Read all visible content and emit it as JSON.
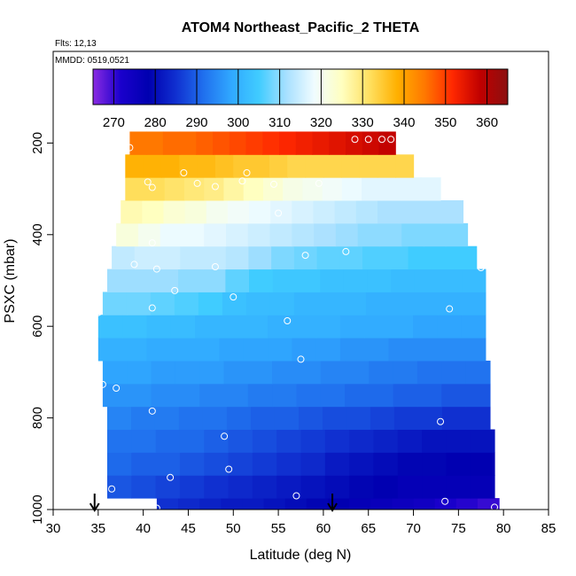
{
  "chart_data": {
    "type": "heatmap",
    "title": "ATOM4 Northeast_Pacific_2 THETA",
    "annotations": [
      "Flts: 12,13",
      "MMDD: 0519,0521"
    ],
    "xlabel": "Latitude (deg N)",
    "ylabel": "PSXC (mbar)",
    "xlim": [
      30,
      85
    ],
    "ylim": [
      1000,
      0
    ],
    "x_ticks": [
      30,
      35,
      40,
      45,
      50,
      55,
      60,
      65,
      70,
      75,
      80,
      85
    ],
    "y_ticks": [
      200,
      400,
      600,
      800,
      1000
    ],
    "colorbar": {
      "range": [
        265,
        365
      ],
      "ticks": [
        270,
        280,
        290,
        300,
        310,
        320,
        330,
        340,
        350,
        360
      ],
      "colors": [
        "#8a2be2",
        "#1a00cc",
        "#0000b0",
        "#1030d0",
        "#2070ee",
        "#30a8ff",
        "#40ccff",
        "#a8e0ff",
        "#f0fcff",
        "#ffffc0",
        "#ffe060",
        "#ffb000",
        "#ff7800",
        "#ff2800",
        "#c00000",
        "#8b1010"
      ]
    },
    "bin_height_mbar": 50,
    "bands": [
      {
        "p": 1000,
        "x0": 41.5,
        "x1": 79.5,
        "theta": [
          285,
          284,
          283,
          282,
          282,
          281,
          280,
          279,
          278,
          277,
          276,
          275,
          274,
          272,
          271,
          270
        ]
      },
      {
        "p": 950,
        "x0": 36,
        "x1": 79,
        "theta": [
          289,
          288,
          287,
          286,
          285,
          284,
          283,
          282,
          281,
          280,
          279,
          278,
          277,
          277,
          277,
          277
        ]
      },
      {
        "p": 900,
        "x0": 36,
        "x1": 79,
        "theta": [
          291,
          290,
          290,
          289,
          288,
          287,
          286,
          285,
          284,
          282,
          281,
          280,
          279,
          279,
          278,
          278
        ]
      },
      {
        "p": 850,
        "x0": 36,
        "x1": 79,
        "theta": [
          292,
          292,
          291,
          291,
          290,
          289,
          288,
          287,
          286,
          285,
          284,
          283,
          282,
          281,
          281,
          281
        ]
      },
      {
        "p": 800,
        "x0": 36,
        "x1": 78.5,
        "theta": [
          294,
          293,
          293,
          292,
          292,
          291,
          290,
          290,
          289,
          288,
          288,
          287,
          286,
          286,
          285,
          285
        ]
      },
      {
        "p": 750,
        "x0": 35.5,
        "x1": 78.5,
        "theta": [
          296,
          296,
          295,
          295,
          294,
          294,
          293,
          293,
          292,
          292,
          291,
          291,
          290,
          290,
          289,
          289
        ]
      },
      {
        "p": 700,
        "x0": 35.5,
        "x1": 78.5,
        "theta": [
          298,
          298,
          297,
          297,
          297,
          296,
          296,
          295,
          295,
          294,
          294,
          293,
          293,
          292,
          292,
          292
        ]
      },
      {
        "p": 650,
        "x0": 35,
        "x1": 78,
        "theta": [
          300,
          300,
          299,
          299,
          299,
          298,
          298,
          298,
          297,
          297,
          296,
          296,
          295,
          295,
          295,
          295
        ]
      },
      {
        "p": 600,
        "x0": 35,
        "x1": 78,
        "theta": [
          303,
          303,
          302,
          302,
          301,
          301,
          301,
          300,
          300,
          300,
          299,
          299,
          299,
          298,
          298,
          298
        ]
      },
      {
        "p": 550,
        "x0": 35.5,
        "x1": 78,
        "theta": [
          308,
          308,
          307,
          306,
          305,
          303,
          302,
          302,
          301,
          301,
          301,
          300,
          300,
          300,
          300,
          300
        ]
      },
      {
        "p": 500,
        "x0": 36,
        "x1": 78,
        "theta": [
          311,
          311,
          311,
          310,
          310,
          307,
          305,
          304,
          304,
          303,
          303,
          303,
          302,
          302,
          302,
          302
        ]
      },
      {
        "p": 450,
        "x0": 36.5,
        "x1": 77,
        "theta": [
          314,
          315,
          315,
          314,
          314,
          313,
          311,
          309,
          308,
          307,
          307,
          306,
          306,
          305,
          305,
          305
        ]
      },
      {
        "p": 400,
        "x0": 37,
        "x1": 76,
        "theta": [
          322,
          320,
          318,
          318,
          317,
          316,
          315,
          314,
          313,
          312,
          311,
          310,
          310,
          309,
          309,
          309
        ]
      },
      {
        "p": 350,
        "x0": 37.5,
        "x1": 75.5,
        "theta": [
          326,
          325,
          323,
          322,
          320,
          319,
          318,
          317,
          316,
          315,
          314,
          313,
          312,
          312,
          312,
          312
        ]
      },
      {
        "p": 300,
        "x0": 38,
        "x1": 73,
        "theta": [
          332,
          332,
          331,
          330,
          329,
          327,
          325,
          323,
          321,
          320,
          319,
          318,
          317,
          317,
          317,
          317
        ]
      },
      {
        "p": 250,
        "x0": 38,
        "x1": 70,
        "theta": [
          338,
          338,
          338,
          337,
          337,
          336,
          335,
          335,
          334,
          333,
          333,
          333,
          333,
          333,
          333,
          333
        ]
      },
      {
        "p": 200,
        "x0": 38.5,
        "x1": 68,
        "theta": [
          345,
          345,
          346,
          346,
          347,
          348,
          349,
          350,
          351,
          352,
          353,
          354,
          355,
          356,
          357,
          358
        ]
      }
    ],
    "points": [
      [
        65,
        192
      ],
      [
        66.5,
        192
      ],
      [
        67.5,
        192
      ],
      [
        63.5,
        192
      ],
      [
        38.5,
        210
      ],
      [
        44.5,
        265
      ],
      [
        51.5,
        265
      ],
      [
        40.5,
        285
      ],
      [
        41,
        297
      ],
      [
        46,
        288
      ],
      [
        48,
        295
      ],
      [
        51,
        283
      ],
      [
        54.5,
        290
      ],
      [
        59.5,
        288
      ],
      [
        55,
        353
      ],
      [
        74,
        292
      ],
      [
        39,
        465
      ],
      [
        41,
        418
      ],
      [
        41.5,
        475
      ],
      [
        48,
        470
      ],
      [
        58,
        445
      ],
      [
        62.5,
        437
      ],
      [
        77.5,
        472
      ],
      [
        43.5,
        522
      ],
      [
        50,
        536
      ],
      [
        41,
        560
      ],
      [
        35,
        570
      ],
      [
        74,
        562
      ],
      [
        56,
        588
      ],
      [
        57.5,
        672
      ],
      [
        35.5,
        727
      ],
      [
        37,
        735
      ],
      [
        41,
        785
      ],
      [
        49,
        840
      ],
      [
        73,
        808
      ],
      [
        49.5,
        912
      ],
      [
        43,
        930
      ],
      [
        36.5,
        955
      ],
      [
        57,
        970
      ],
      [
        73.5,
        982
      ],
      [
        41.5,
        997
      ],
      [
        79,
        995
      ]
    ],
    "arrows": [
      34.6,
      61
    ]
  }
}
